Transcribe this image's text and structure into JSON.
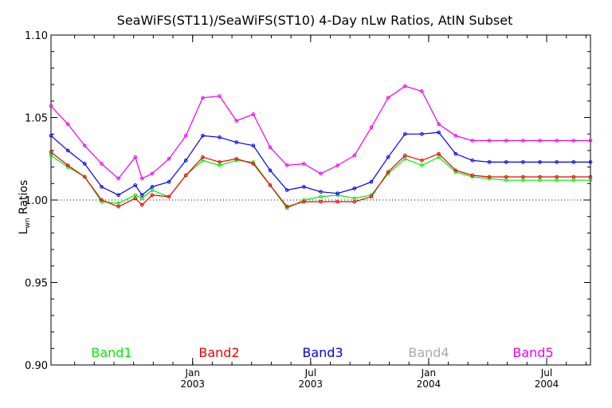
{
  "chart_data": {
    "type": "line",
    "title": "SeaWiFS(ST11)/SeaWiFS(ST10) 4-Day nLw Ratios, AtIN Subset",
    "ylabel_main": "L",
    "ylabel_sub": "wn",
    "ylabel_rest": " Ratios",
    "ylim": [
      0.9,
      1.1
    ],
    "xlim": [
      0,
      32
    ],
    "grid": false,
    "reference_line": 1.0,
    "yticks": [
      {
        "value": 0.9,
        "label": "0.90"
      },
      {
        "value": 0.95,
        "label": "0.95"
      },
      {
        "value": 1.0,
        "label": "1.00"
      },
      {
        "value": 1.05,
        "label": "1.05"
      },
      {
        "value": 1.1,
        "label": "1.10"
      }
    ],
    "xticks": [
      {
        "value": 8.4,
        "label": "Jan",
        "label2": "2003"
      },
      {
        "value": 15.4,
        "label": "Jul",
        "label2": "2003"
      },
      {
        "value": 22.4,
        "label": "Jan",
        "label2": "2004"
      },
      {
        "value": 29.4,
        "label": "Jul",
        "label2": "2004"
      }
    ],
    "series": [
      {
        "name": "Band1",
        "color": "#00ee00",
        "x": [
          0,
          1,
          2,
          3,
          4,
          5,
          5.4,
          6,
          7,
          8,
          9,
          10,
          11,
          12,
          13,
          14,
          15,
          16,
          17,
          18,
          19,
          20,
          21,
          22,
          23,
          24,
          25,
          26,
          27,
          28,
          29,
          30,
          31,
          32
        ],
        "y": [
          1.027,
          1.02,
          1.014,
          0.999,
          0.998,
          1.003,
          1.001,
          1.006,
          1.002,
          1.015,
          1.024,
          1.021,
          1.024,
          1.023,
          1.009,
          0.995,
          1.0,
          1.002,
          1.003,
          1.001,
          1.003,
          1.016,
          1.025,
          1.021,
          1.026,
          1.017,
          1.014,
          1.013,
          1.012,
          1.012,
          1.012,
          1.012,
          1.012,
          1.012
        ]
      },
      {
        "name": "Band2",
        "color": "#ee0000",
        "x": [
          0,
          1,
          2,
          3,
          4,
          5,
          5.4,
          6,
          7,
          8,
          9,
          10,
          11,
          12,
          13,
          14,
          15,
          16,
          17,
          18,
          19,
          20,
          21,
          22,
          23,
          24,
          25,
          26,
          27,
          28,
          29,
          30,
          31,
          32
        ],
        "y": [
          1.029,
          1.021,
          1.014,
          1.0,
          0.996,
          1.001,
          0.997,
          1.003,
          1.002,
          1.015,
          1.026,
          1.023,
          1.025,
          1.022,
          1.009,
          0.996,
          0.999,
          0.999,
          0.999,
          0.999,
          1.002,
          1.017,
          1.027,
          1.024,
          1.028,
          1.018,
          1.015,
          1.014,
          1.014,
          1.014,
          1.014,
          1.014,
          1.014,
          1.014
        ]
      },
      {
        "name": "Band3",
        "color": "#0000ee",
        "x": [
          0,
          1,
          2,
          3,
          4,
          5,
          5.4,
          6,
          7,
          8,
          9,
          10,
          11,
          12,
          13,
          14,
          15,
          16,
          17,
          18,
          19,
          20,
          21,
          22,
          23,
          24,
          25,
          26,
          27,
          28,
          29,
          30,
          31,
          32
        ],
        "y": [
          1.039,
          1.03,
          1.022,
          1.008,
          1.003,
          1.009,
          1.003,
          1.008,
          1.011,
          1.024,
          1.039,
          1.038,
          1.035,
          1.033,
          1.018,
          1.006,
          1.008,
          1.005,
          1.004,
          1.007,
          1.011,
          1.026,
          1.04,
          1.04,
          1.041,
          1.028,
          1.024,
          1.023,
          1.023,
          1.023,
          1.023,
          1.023,
          1.023,
          1.023
        ]
      },
      {
        "name": "Band4",
        "color": "#aaaaaa",
        "x": [],
        "y": []
      },
      {
        "name": "Band5",
        "color": "#ee00ee",
        "x": [
          0,
          1,
          2,
          3,
          4,
          5,
          5.4,
          6,
          7,
          8,
          9,
          10,
          11,
          12,
          13,
          14,
          15,
          16,
          17,
          18,
          19,
          20,
          21,
          22,
          23,
          24,
          25,
          26,
          27,
          28,
          29,
          30,
          31,
          32
        ],
        "y": [
          1.057,
          1.046,
          1.033,
          1.022,
          1.013,
          1.026,
          1.013,
          1.016,
          1.025,
          1.039,
          1.062,
          1.063,
          1.048,
          1.052,
          1.032,
          1.021,
          1.022,
          1.016,
          1.021,
          1.027,
          1.044,
          1.062,
          1.069,
          1.066,
          1.046,
          1.039,
          1.036,
          1.036,
          1.036,
          1.036,
          1.036,
          1.036,
          1.036,
          1.036
        ]
      }
    ]
  }
}
